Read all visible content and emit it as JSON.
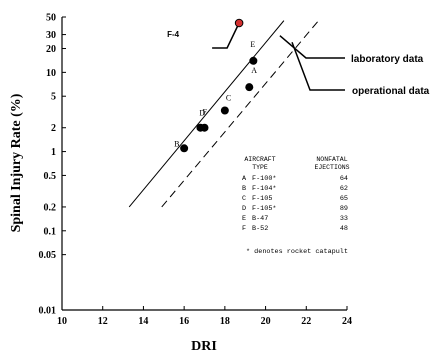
{
  "chart_data": {
    "type": "scatter",
    "xlabel": "DRI",
    "ylabel": "Spinal Injury Rate (%)",
    "xlim": [
      10,
      24
    ],
    "ylim": [
      0.01,
      50
    ],
    "y_scale": "log",
    "x_ticks": [
      "10",
      "12",
      "14",
      "16",
      "18",
      "20",
      "22",
      "24"
    ],
    "y_ticks": [
      {
        "v": 50,
        "label": "50"
      },
      {
        "v": 30,
        "label": "30"
      },
      {
        "v": 20,
        "label": "20"
      },
      {
        "v": 10,
        "label": "10"
      },
      {
        "v": 5,
        "label": "5"
      },
      {
        "v": 2,
        "label": "2"
      },
      {
        "v": 1,
        "label": "1"
      },
      {
        "v": 0.5,
        "label": "0.5"
      },
      {
        "v": 0.2,
        "label": "0.2"
      },
      {
        "v": 0.1,
        "label": "0.1"
      },
      {
        "v": 0.05,
        "label": "0.05"
      },
      {
        "v": 0.01,
        "label": "0.01"
      }
    ],
    "points": [
      {
        "label": "A",
        "x": 19.2,
        "y": 6.5
      },
      {
        "label": "B",
        "x": 16.0,
        "y": 1.1
      },
      {
        "label": "C",
        "x": 18.0,
        "y": 3.3
      },
      {
        "label": "D",
        "x": 16.8,
        "y": 2.0
      },
      {
        "label": "E",
        "x": 19.4,
        "y": 14.0
      },
      {
        "label": "F",
        "x": 17.0,
        "y": 2.0
      }
    ],
    "f4_point": {
      "label": "F-4",
      "x": 18.7,
      "y": 42,
      "color": "#d32f2f"
    },
    "lines": [
      {
        "name": "laboratory data",
        "style": "solid",
        "from": [
          13.3,
          0.2
        ],
        "to": [
          20.9,
          45
        ]
      },
      {
        "name": "operational data",
        "style": "dashed",
        "from": [
          14.9,
          0.2
        ],
        "to": [
          22.6,
          45
        ]
      }
    ],
    "table": {
      "headers": [
        [
          "AIRCRAFT",
          "TYPE"
        ],
        [
          "NONFATAL",
          "EJECTIONS"
        ]
      ],
      "rows": [
        [
          "A",
          "F-100*",
          "64"
        ],
        [
          "B",
          "F-104*",
          "62"
        ],
        [
          "C",
          "F-105",
          "65"
        ],
        [
          "D",
          "F-105*",
          "89"
        ],
        [
          "E",
          "B-47",
          "33"
        ],
        [
          "F",
          "B-52",
          "48"
        ]
      ],
      "footnote": "* denotes rocket catapult"
    }
  }
}
